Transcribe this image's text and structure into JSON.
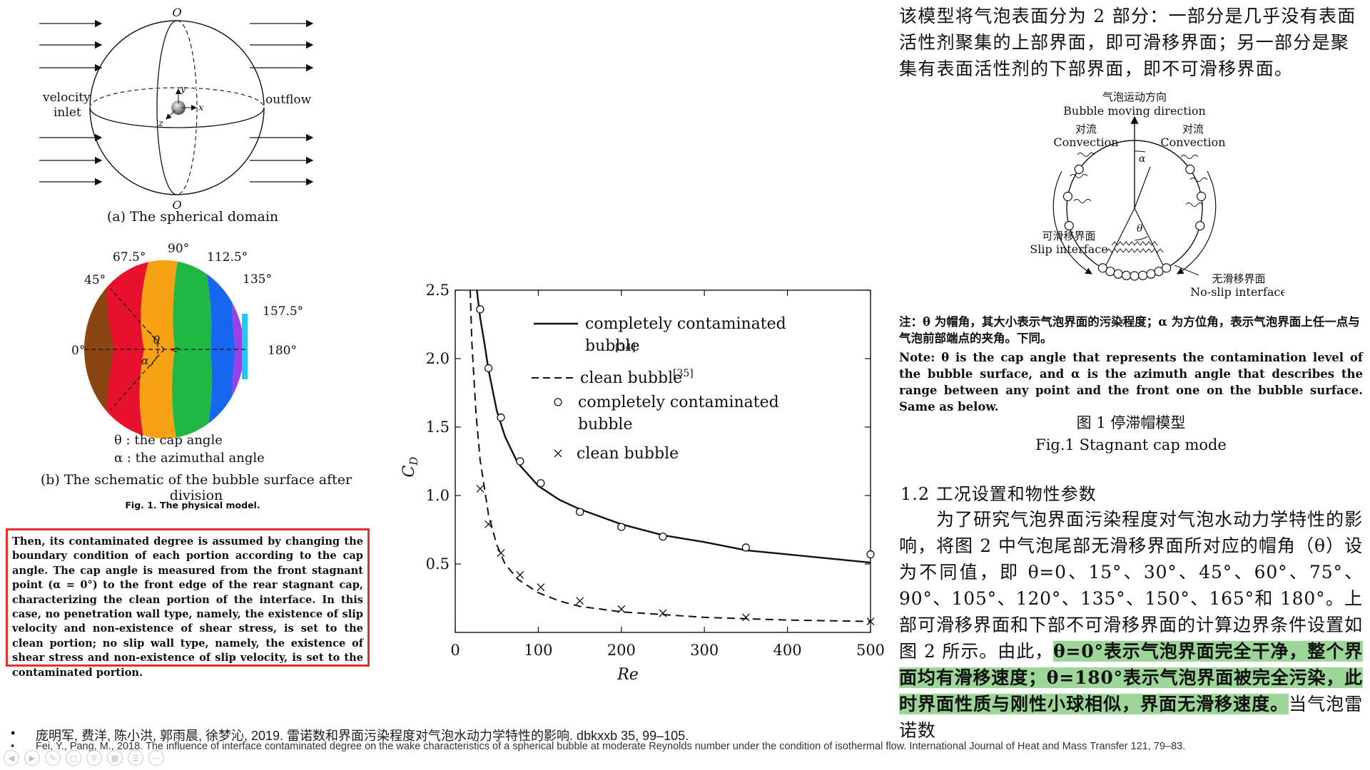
{
  "figure_a": {
    "top_label": "O",
    "bottom_label": "O",
    "left_label_1": "velocity",
    "left_label_2": "inlet",
    "right_label": "outflow",
    "axis_y": "y",
    "axis_x": "x",
    "axis_z": "z",
    "caption": "(a)  The spherical domain"
  },
  "figure_b": {
    "angles": [
      "0°",
      "45°",
      "67.5°",
      "90°",
      "112.5°",
      "135°",
      "157.5°",
      "180°"
    ],
    "theta_symbol": "θ",
    "alpha_symbol": "α",
    "legend_theta": "θ : the cap angle",
    "legend_alpha": "α : the azimuthal angle",
    "caption": "(b)  The schematic of the bubble surface after division",
    "segment_colors": [
      "#8B4513",
      "#E8112D",
      "#F7A115",
      "#1FB843",
      "#1766F0",
      "#9A40E8",
      "#24C8F0"
    ]
  },
  "fig1_caption": "Fig. 1.  The physical model.",
  "red_box_text": "Then, its contaminated degree is assumed by changing the boundary condition of each portion according to the cap angle. The cap angle is measured from the front stagnant point (α = 0°) to the front edge of the rear stagnant cap, characterizing the clean portion of the interface. In this case, no penetration wall type, namely, the existence of slip velocity and non-existence of shear stress, is set to the clean portion; no slip wall type, namely, the existence of shear stress and non-existence of slip velocity, is set to the contaminated portion.",
  "chart_data": {
    "type": "line",
    "xlabel": "Re",
    "ylabel": "C",
    "ylabel_sub": "D",
    "xlim": [
      0,
      500
    ],
    "ylim": [
      0,
      2.5
    ],
    "xticks": [
      0,
      100,
      200,
      300,
      400,
      500
    ],
    "yticks": [
      0.5,
      1.0,
      1.5,
      2.0,
      2.5
    ],
    "xtick_labels": [
      "0",
      "100",
      "200",
      "300",
      "400",
      "500"
    ],
    "ytick_labels": [
      "0.5",
      "1.0",
      "1.5",
      "2.0",
      "2.5"
    ],
    "grid": false,
    "legend_position": "top-right",
    "legend": [
      {
        "text": "completely contaminated bubble",
        "ref": "[34]",
        "style": "solid-line"
      },
      {
        "text": "clean bubble",
        "ref": "[35]",
        "style": "dashed-line"
      },
      {
        "text": "completely contaminated bubble",
        "ref": "",
        "style": "circle"
      },
      {
        "text": "clean bubble",
        "ref": "",
        "style": "cross"
      }
    ],
    "series": [
      {
        "style": "solid-line",
        "x": [
          26,
          30,
          35,
          40,
          50,
          60,
          75,
          100,
          125,
          150,
          200,
          250,
          300,
          350,
          400,
          450,
          500
        ],
        "y": [
          2.5,
          2.3,
          2.12,
          1.92,
          1.62,
          1.43,
          1.24,
          1.07,
          0.97,
          0.9,
          0.79,
          0.71,
          0.66,
          0.6,
          0.57,
          0.54,
          0.51
        ]
      },
      {
        "style": "dashed-line",
        "x": [
          18,
          20,
          25,
          30,
          40,
          50,
          60,
          75,
          100,
          125,
          150,
          200,
          250,
          300,
          350,
          400,
          450,
          500
        ],
        "y": [
          2.5,
          2.12,
          1.6,
          1.26,
          0.86,
          0.64,
          0.5,
          0.39,
          0.29,
          0.23,
          0.19,
          0.15,
          0.13,
          0.11,
          0.1,
          0.09,
          0.085,
          0.08
        ]
      },
      {
        "style": "circle",
        "x": [
          30,
          40,
          55,
          78,
          103,
          150,
          200,
          250,
          350,
          500
        ],
        "y": [
          2.36,
          1.93,
          1.57,
          1.25,
          1.09,
          0.88,
          0.77,
          0.7,
          0.62,
          0.57
        ]
      },
      {
        "style": "cross",
        "x": [
          30,
          40,
          55,
          78,
          103,
          150,
          200,
          250,
          350,
          500
        ],
        "y": [
          1.05,
          0.79,
          0.58,
          0.42,
          0.33,
          0.23,
          0.17,
          0.14,
          0.11,
          0.08
        ]
      }
    ]
  },
  "right": {
    "zh_top": "该模型将气泡表面分为 2 部分：一部分是几乎没有表面活性剂聚集的上部界面，即可滑移界面；另一部分是聚集有表面活性剂的下部界面，即不可滑移界面。",
    "cap_fig": {
      "direction_zh": "气泡运动方向",
      "direction_en": "Bubble moving direction",
      "conv_zh_l": "对流",
      "conv_en_l": "Convection",
      "conv_zh_r": "对流",
      "conv_en_r": "Convection",
      "alpha": "α",
      "theta": "θ",
      "slip_zh": "可滑移界面",
      "slip_en": "Slip interface",
      "noslip_zh": "无滑移界面",
      "noslip_en": "No-slip interface"
    },
    "note_zh": "注：θ 为帽角，其大小表示气泡界面的污染程度；α 为方位角，表示气泡界面上任一点与气泡前部端点的夹角。下同。",
    "note_en": "Note: θ is the cap angle that represents the contamination level of the bubble surface, and α is the azimuth angle that describes the range between any point and the front one on the bubble surface. Same as below.",
    "fig1_zh": "图 1   停滞帽模型",
    "fig1_en": "Fig.1    Stagnant cap mode",
    "section_title": "1.2   工况设置和物性参数",
    "body_plain": "为了研究气泡界面污染程度对气泡水动力学特性的影响，将图 2 中气泡尾部无滑移界面所对应的帽角（θ）设为不同值，即 θ=0、15°、30°、45°、60°、75°、90°、105°、120°、135°、150°、165°和 180°。上部可滑移界面和下部不可滑移界面的计算边界条件设置如图 2 所示。由此，",
    "body_highlight": "θ=0°表示气泡界面完全干净，整个界面均有滑移速度；θ=180°表示气泡界面被完全污染，此时界面性质与刚性小球相似，界面无滑移速度。",
    "body_tail": "当气泡雷诺数",
    "cut_line": "……　　　　　　　　　　　　　　　　"
  },
  "references": [
    "庞明军, 费洋, 陈小洪, 郭雨晨, 徐梦沁, 2019. 雷诺数和界面污染程度对气泡水动力学特性的影响. dbkxxb 35, 99–105.",
    "Fei, Y., Pang, M., 2018. The influence of interface contaminated degree on the wake characteristics of a spherical bubble at moderate Reynolds number under the condition of isothermal flow. International Journal of Heat and Mass Transfer 121, 79–83."
  ],
  "bullet": "•",
  "toolbar_icons": [
    "back-icon",
    "forward-icon",
    "pen-icon",
    "copy-icon",
    "zoom-icon",
    "slides-icon",
    "menu-icon",
    "more-icon"
  ]
}
